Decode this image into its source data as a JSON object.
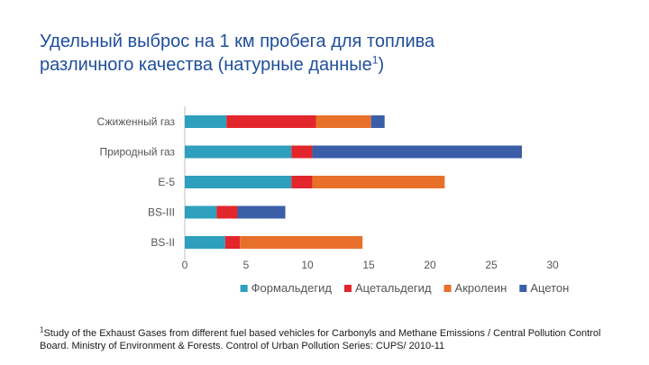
{
  "title": {
    "text": "Удельный выброс на 1 км пробега для топлива различного качества (натурные данные",
    "ref": "1",
    "close": ")"
  },
  "chart_data": {
    "type": "bar",
    "orientation": "horizontal",
    "stacked": true,
    "categories": [
      "Сжиженный газ",
      "Природный газ",
      "E-5",
      "BS-III",
      "BS-II"
    ],
    "series": [
      {
        "name": "Формальдегид",
        "color": "#2e9fbd",
        "values": [
          3.4,
          8.7,
          8.7,
          2.6,
          3.3
        ]
      },
      {
        "name": "Ацетальдегид",
        "color": "#e2262b",
        "values": [
          7.3,
          1.7,
          1.7,
          1.7,
          1.2
        ]
      },
      {
        "name": "Акролеин",
        "color": "#e8702a",
        "values": [
          4.5,
          0,
          10.8,
          0,
          10.0
        ]
      },
      {
        "name": "Ацетон",
        "color": "#3a5ea8",
        "values": [
          1.1,
          17.1,
          0,
          3.9,
          0
        ]
      }
    ],
    "xlim": [
      0,
      30
    ],
    "xticks": [
      "0",
      "5",
      "10",
      "15",
      "20",
      "25",
      "30"
    ],
    "legend_position": "bottom",
    "grid": false
  },
  "footnote": {
    "ref": "1",
    "text": "Study of the Exhaust Gases from different fuel based vehicles for Carbonyls and Methane Emissions / Central Pollution Control Board. Ministry of Environment & Forests. Control of Urban Pollution Series: CUPS/ 2010-11"
  }
}
